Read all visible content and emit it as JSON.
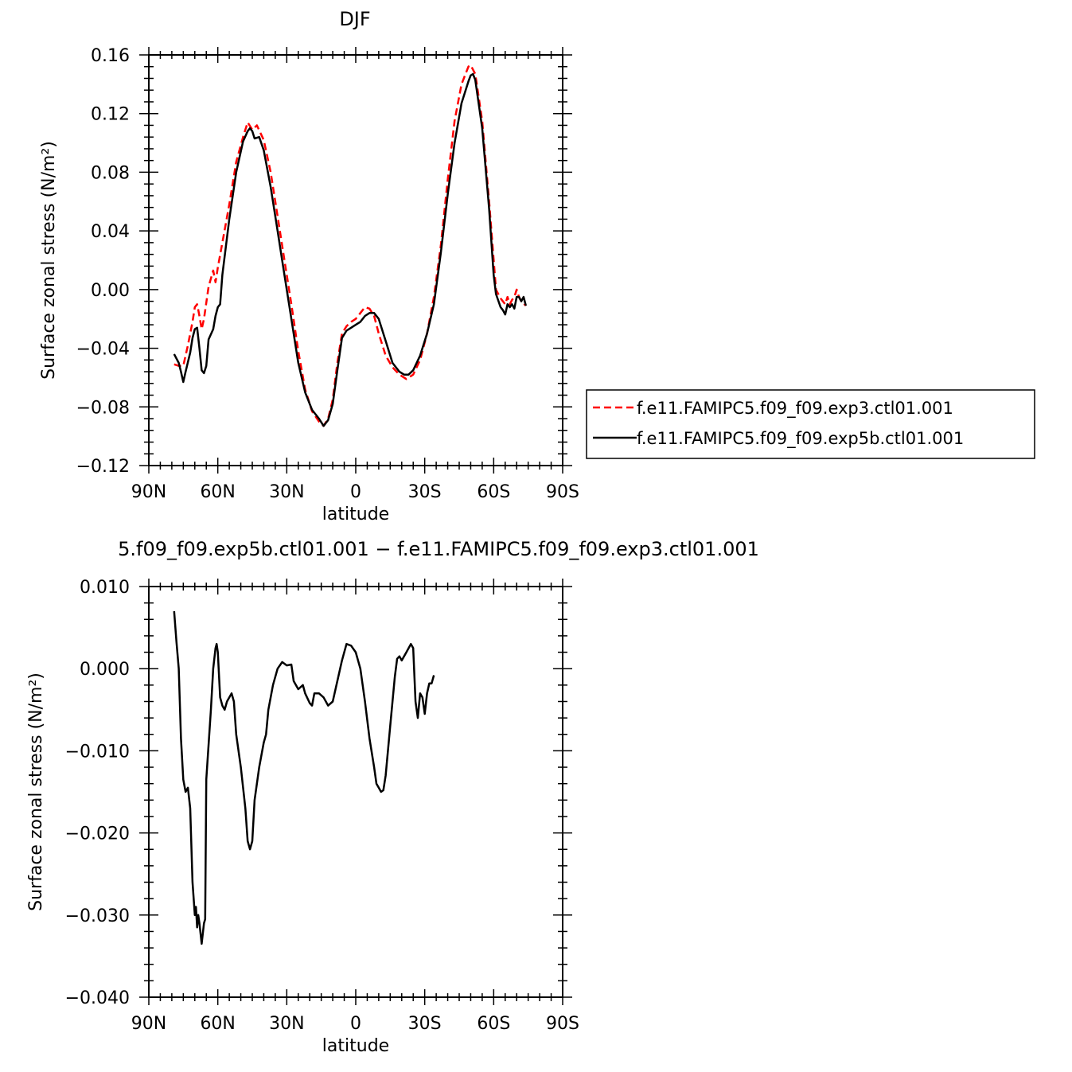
{
  "chart_data": [
    {
      "type": "line",
      "title": "DJF",
      "xlabel": "latitude",
      "ylabel": "Surface zonal stress (N/m²)",
      "xlim": [
        90,
        -90
      ],
      "ylim": [
        -0.12,
        0.16
      ],
      "x_ticks": [
        90,
        60,
        30,
        0,
        -30,
        -60,
        -90
      ],
      "x_tick_labels": [
        "90N",
        "60N",
        "30N",
        "0",
        "30S",
        "60S",
        "90S"
      ],
      "y_ticks": [
        -0.12,
        -0.08,
        -0.04,
        0.0,
        0.04,
        0.08,
        0.12,
        0.16
      ],
      "y_tick_labels": [
        "−0.12",
        "−0.08",
        "−0.04",
        "0.00",
        "0.04",
        "0.08",
        "0.12",
        "0.16"
      ],
      "legend_position": "right, outside plot",
      "series": [
        {
          "name": "f.e11.FAMIPC5.f09_f09.exp3.ctl01.001",
          "color": "#ff0000",
          "dash": "dashed",
          "points": [
            [
              79,
              -0.051
            ],
            [
              77,
              -0.052
            ],
            [
              75,
              -0.052
            ],
            [
              73,
              -0.038
            ],
            [
              71,
              -0.022
            ],
            [
              70,
              -0.012
            ],
            [
              69,
              -0.01
            ],
            [
              68,
              -0.018
            ],
            [
              67,
              -0.027
            ],
            [
              66,
              -0.02
            ],
            [
              64,
              0.002
            ],
            [
              62,
              0.013
            ],
            [
              61,
              0.005
            ],
            [
              60,
              0.015
            ],
            [
              58,
              0.032
            ],
            [
              55,
              0.058
            ],
            [
              52,
              0.087
            ],
            [
              49,
              0.104
            ],
            [
              47,
              0.114
            ],
            [
              45,
              0.109
            ],
            [
              43,
              0.112
            ],
            [
              40,
              0.102
            ],
            [
              37,
              0.08
            ],
            [
              34,
              0.05
            ],
            [
              31,
              0.02
            ],
            [
              28,
              -0.01
            ],
            [
              25,
              -0.042
            ],
            [
              22,
              -0.068
            ],
            [
              19,
              -0.083
            ],
            [
              16,
              -0.09
            ],
            [
              14,
              -0.093
            ],
            [
              12,
              -0.088
            ],
            [
              10,
              -0.075
            ],
            [
              8,
              -0.05
            ],
            [
              6,
              -0.03
            ],
            [
              4,
              -0.025
            ],
            [
              2,
              -0.022
            ],
            [
              0,
              -0.02
            ],
            [
              -2,
              -0.016
            ],
            [
              -4,
              -0.012
            ],
            [
              -6,
              -0.013
            ],
            [
              -8,
              -0.018
            ],
            [
              -10,
              -0.03
            ],
            [
              -13,
              -0.045
            ],
            [
              -16,
              -0.053
            ],
            [
              -19,
              -0.058
            ],
            [
              -22,
              -0.061
            ],
            [
              -25,
              -0.058
            ],
            [
              -28,
              -0.048
            ],
            [
              -31,
              -0.03
            ],
            [
              -34,
              -0.005
            ],
            [
              -37,
              0.03
            ],
            [
              -40,
              0.075
            ],
            [
              -43,
              0.115
            ],
            [
              -46,
              0.14
            ],
            [
              -49,
              0.152
            ],
            [
              -50,
              0.153
            ],
            [
              -52,
              0.147
            ],
            [
              -55,
              0.115
            ],
            [
              -58,
              0.06
            ],
            [
              -61,
              0.0
            ],
            [
              -63,
              -0.006
            ],
            [
              -65,
              -0.01
            ],
            [
              -66,
              -0.005
            ],
            [
              -67,
              -0.01
            ],
            [
              -68,
              -0.007
            ],
            [
              -69,
              -0.005
            ],
            [
              -70,
              0.0
            ],
            [
              -71,
              -0.005
            ],
            [
              -72,
              -0.008
            ],
            [
              -74,
              -0.011
            ]
          ]
        },
        {
          "name": "f.e11.FAMIPC5.f09_f09.exp5b.ctl01.001",
          "color": "#000000",
          "dash": "solid",
          "points": [
            [
              79,
              -0.044
            ],
            [
              77,
              -0.05
            ],
            [
              76,
              -0.056
            ],
            [
              75,
              -0.063
            ],
            [
              74,
              -0.056
            ],
            [
              72,
              -0.043
            ],
            [
              71,
              -0.033
            ],
            [
              70,
              -0.027
            ],
            [
              69,
              -0.026
            ],
            [
              68,
              -0.04
            ],
            [
              67,
              -0.055
            ],
            [
              66,
              -0.057
            ],
            [
              65,
              -0.052
            ],
            [
              64,
              -0.034
            ],
            [
              62,
              -0.027
            ],
            [
              61,
              -0.018
            ],
            [
              60,
              -0.012
            ],
            [
              59,
              -0.01
            ],
            [
              58,
              0.01
            ],
            [
              55,
              0.048
            ],
            [
              52,
              0.08
            ],
            [
              49,
              0.101
            ],
            [
              47,
              0.108
            ],
            [
              46,
              0.11
            ],
            [
              45,
              0.108
            ],
            [
              44,
              0.103
            ],
            [
              42,
              0.104
            ],
            [
              40,
              0.095
            ],
            [
              37,
              0.07
            ],
            [
              34,
              0.04
            ],
            [
              31,
              0.01
            ],
            [
              28,
              -0.02
            ],
            [
              25,
              -0.05
            ],
            [
              22,
              -0.07
            ],
            [
              19,
              -0.082
            ],
            [
              16,
              -0.088
            ],
            [
              14,
              -0.093
            ],
            [
              12,
              -0.089
            ],
            [
              10,
              -0.078
            ],
            [
              8,
              -0.055
            ],
            [
              6,
              -0.033
            ],
            [
              4,
              -0.028
            ],
            [
              2,
              -0.026
            ],
            [
              0,
              -0.024
            ],
            [
              -2,
              -0.022
            ],
            [
              -4,
              -0.018
            ],
            [
              -6,
              -0.016
            ],
            [
              -8,
              -0.016
            ],
            [
              -10,
              -0.02
            ],
            [
              -13,
              -0.035
            ],
            [
              -16,
              -0.05
            ],
            [
              -19,
              -0.056
            ],
            [
              -21,
              -0.058
            ],
            [
              -23,
              -0.058
            ],
            [
              -25,
              -0.055
            ],
            [
              -28,
              -0.045
            ],
            [
              -31,
              -0.03
            ],
            [
              -34,
              -0.01
            ],
            [
              -37,
              0.025
            ],
            [
              -40,
              0.065
            ],
            [
              -43,
              0.1
            ],
            [
              -46,
              0.127
            ],
            [
              -49,
              0.142
            ],
            [
              -50,
              0.146
            ],
            [
              -51,
              0.147
            ],
            [
              -52,
              0.143
            ],
            [
              -55,
              0.11
            ],
            [
              -58,
              0.055
            ],
            [
              -60,
              0.01
            ],
            [
              -61,
              -0.003
            ],
            [
              -63,
              -0.012
            ],
            [
              -64,
              -0.014
            ],
            [
              -65,
              -0.017
            ],
            [
              -66,
              -0.01
            ],
            [
              -67,
              -0.012
            ],
            [
              -68,
              -0.01
            ],
            [
              -69,
              -0.013
            ],
            [
              -70,
              -0.005
            ],
            [
              -71,
              -0.005
            ],
            [
              -72,
              -0.008
            ],
            [
              -73,
              -0.005
            ],
            [
              -74,
              -0.011
            ]
          ]
        }
      ]
    },
    {
      "type": "line",
      "title": "5.f09_f09.exp5b.ctl01.001 − f.e11.FAMIPC5.f09_f09.exp3.ctl01.001",
      "xlabel": "latitude",
      "ylabel": "Surface zonal stress (N/m²)",
      "xlim": [
        90,
        -90
      ],
      "ylim": [
        -0.04,
        0.01
      ],
      "x_ticks": [
        90,
        60,
        30,
        0,
        -30,
        -60,
        -90
      ],
      "x_tick_labels": [
        "90N",
        "60N",
        "30N",
        "0",
        "30S",
        "60S",
        "90S"
      ],
      "y_ticks": [
        -0.04,
        -0.03,
        -0.02,
        -0.01,
        0.0,
        0.01
      ],
      "y_tick_labels": [
        "−0.040",
        "−0.030",
        "−0.020",
        "−0.010",
        "0.000",
        "0.010"
      ],
      "series": [
        {
          "color": "#000000",
          "dash": "solid",
          "points": [
            [
              79,
              0.007
            ],
            [
              78,
              0.0033
            ],
            [
              77,
              0.0
            ],
            [
              76,
              -0.0085
            ],
            [
              75,
              -0.0135
            ],
            [
              74,
              -0.015
            ],
            [
              73,
              -0.0145
            ],
            [
              72,
              -0.017
            ],
            [
              71,
              -0.026
            ],
            [
              70,
              -0.03
            ],
            [
              69.5,
              -0.029
            ],
            [
              69,
              -0.0315
            ],
            [
              68.5,
              -0.03
            ],
            [
              68,
              -0.031
            ],
            [
              67,
              -0.0335
            ],
            [
              66,
              -0.031
            ],
            [
              65.5,
              -0.0305
            ],
            [
              65,
              -0.0135
            ],
            [
              63,
              -0.005
            ],
            [
              62,
              0.0
            ],
            [
              61,
              0.0025
            ],
            [
              60.5,
              0.003
            ],
            [
              60,
              0.002
            ],
            [
              59,
              -0.0035
            ],
            [
              58,
              -0.0045
            ],
            [
              57,
              -0.005
            ],
            [
              56,
              -0.004
            ],
            [
              55,
              -0.0035
            ],
            [
              54,
              -0.003
            ],
            [
              53,
              -0.004
            ],
            [
              52,
              -0.008
            ],
            [
              50,
              -0.012
            ],
            [
              48,
              -0.017
            ],
            [
              47,
              -0.021
            ],
            [
              46,
              -0.022
            ],
            [
              45,
              -0.021
            ],
            [
              44,
              -0.016
            ],
            [
              42,
              -0.012
            ],
            [
              40,
              -0.009
            ],
            [
              39,
              -0.008
            ],
            [
              38,
              -0.005
            ],
            [
              36,
              -0.002
            ],
            [
              34,
              0.0
            ],
            [
              32,
              0.0008
            ],
            [
              30,
              0.0004
            ],
            [
              28,
              0.0005
            ],
            [
              27,
              -0.0015
            ],
            [
              25,
              -0.0025
            ],
            [
              23,
              -0.002
            ],
            [
              22,
              -0.003
            ],
            [
              20,
              -0.0042
            ],
            [
              19,
              -0.0045
            ],
            [
              18,
              -0.003
            ],
            [
              16,
              -0.003
            ],
            [
              14,
              -0.0035
            ],
            [
              12,
              -0.0045
            ],
            [
              10,
              -0.004
            ],
            [
              8,
              -0.0015
            ],
            [
              6,
              0.001
            ],
            [
              4,
              0.003
            ],
            [
              2,
              0.0028
            ],
            [
              0,
              0.002
            ],
            [
              -2,
              0.0
            ],
            [
              -4,
              -0.004
            ],
            [
              -6,
              -0.0085
            ],
            [
              -8,
              -0.012
            ],
            [
              -9,
              -0.014
            ],
            [
              -10,
              -0.0145
            ],
            [
              -11,
              -0.015
            ],
            [
              -12,
              -0.0148
            ],
            [
              -13,
              -0.013
            ],
            [
              -15,
              -0.007
            ],
            [
              -17,
              -0.001
            ],
            [
              -18,
              0.0012
            ],
            [
              -19,
              0.0015
            ],
            [
              -20,
              0.001
            ],
            [
              -22,
              0.002
            ],
            [
              -24,
              0.003
            ],
            [
              -25,
              0.0025
            ],
            [
              -26,
              -0.004
            ],
            [
              -27,
              -0.006
            ],
            [
              -28,
              -0.003
            ],
            [
              -29,
              -0.0035
            ],
            [
              -30,
              -0.0055
            ],
            [
              -31,
              -0.003
            ],
            [
              -32,
              -0.0018
            ],
            [
              -33,
              -0.0018
            ],
            [
              -34,
              -0.0008
            ]
          ]
        }
      ]
    }
  ]
}
